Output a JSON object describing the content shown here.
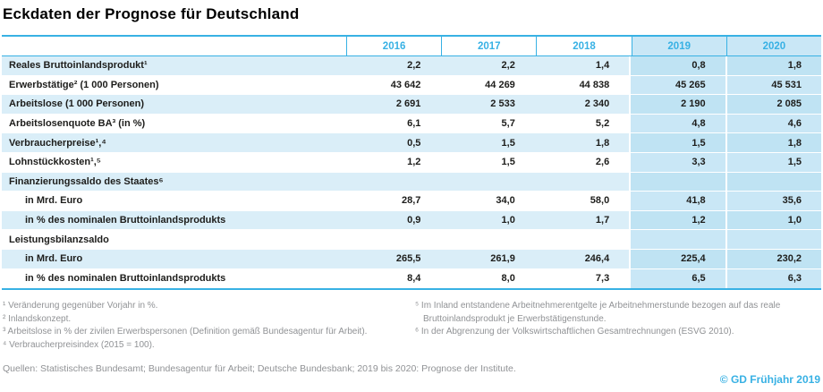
{
  "title": "Eckdaten der Prognose für Deutschland",
  "accent_color": "#38b1e4",
  "stripe_color": "#daeef8",
  "forecast_column_color": "#c9e7f6",
  "table": {
    "years": [
      "2016",
      "2017",
      "2018",
      "2019",
      "2020"
    ],
    "rows": [
      {
        "label": "Reales Bruttoinlandsprodukt¹",
        "values": [
          "2,2",
          "2,2",
          "1,4",
          "0,8",
          "1,8"
        ]
      },
      {
        "label": "Erwerbstätige² (1 000 Personen)",
        "values": [
          "43 642",
          "44 269",
          "44 838",
          "45 265",
          "45 531"
        ]
      },
      {
        "label": "Arbeitslose (1 000 Personen)",
        "values": [
          "2 691",
          "2 533",
          "2 340",
          "2 190",
          "2 085"
        ]
      },
      {
        "label": "Arbeitslosenquote BA³ (in %)",
        "values": [
          "6,1",
          "5,7",
          "5,2",
          "4,8",
          "4,6"
        ]
      },
      {
        "label": "Verbraucherpreise¹,⁴",
        "values": [
          "0,5",
          "1,5",
          "1,8",
          "1,5",
          "1,8"
        ]
      },
      {
        "label": "Lohnstückkosten¹,⁵",
        "values": [
          "1,2",
          "1,5",
          "2,6",
          "3,3",
          "1,5"
        ]
      },
      {
        "label": "Finanzierungssaldo des Staates⁶",
        "values": [
          "",
          "",
          "",
          "",
          ""
        ]
      },
      {
        "label": "in Mrd. Euro",
        "values": [
          "28,7",
          "34,0",
          "58,0",
          "41,8",
          "35,6"
        ]
      },
      {
        "label": "in % des nominalen Bruttoinlandsprodukts",
        "values": [
          "0,9",
          "1,0",
          "1,7",
          "1,2",
          "1,0"
        ]
      },
      {
        "label": "Leistungsbilanzsaldo",
        "values": [
          "",
          "",
          "",
          "",
          ""
        ]
      },
      {
        "label": "in Mrd. Euro",
        "values": [
          "265,5",
          "261,9",
          "246,4",
          "225,4",
          "230,2"
        ]
      },
      {
        "label": "in % des nominalen Bruttoinlandsprodukts",
        "values": [
          "8,4",
          "8,0",
          "7,3",
          "6,5",
          "6,3"
        ]
      }
    ]
  },
  "footnotes": {
    "left": [
      "¹ Veränderung gegenüber Vorjahr in %.",
      "² Inlandskonzept.",
      "³ Arbeitslose in % der zivilen Erwerbspersonen (Definition gemäß Bundesagentur für Arbeit).",
      "⁴ Verbraucherpreisindex (2015 = 100)."
    ],
    "right": [
      "⁵ Im Inland entstandene Arbeitnehmerentgelte je Arbeitnehmerstunde bezogen auf das reale Bruttoinlandsprodukt je Erwerbstätigenstunde.",
      "⁶ In der Abgrenzung der Volkswirtschaftlichen Gesamtrechnungen (ESVG 2010)."
    ]
  },
  "sources": "Quellen: Statistisches Bundesamt; Bundesagentur für Arbeit; Deutsche Bundesbank; 2019 bis 2020: Prognose der Institute.",
  "credit": "© GD Frühjahr 2019"
}
